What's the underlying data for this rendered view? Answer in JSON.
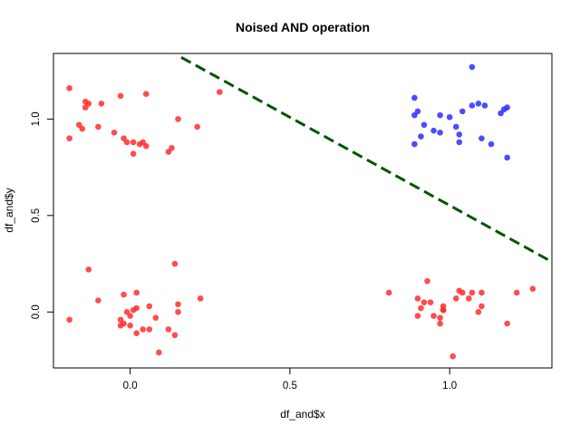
{
  "chart_data": {
    "type": "scatter",
    "title": "Noised AND operation",
    "xlabel": "df_and$x",
    "ylabel": "df_and$y",
    "xlim": [
      -0.24,
      1.32
    ],
    "ylim": [
      -0.29,
      1.34
    ],
    "x_ticks": [
      0.0,
      0.5,
      1.0
    ],
    "x_tick_labels": [
      "0.0",
      "0.5",
      "1.0"
    ],
    "y_ticks": [
      0.0,
      0.5,
      1.0
    ],
    "y_tick_labels": [
      "0.0",
      "0.5",
      "1.0"
    ],
    "grid": false,
    "legend": "none",
    "series": [
      {
        "color": "#ff2d2d",
        "points": [
          [
            -0.19,
            1.16
          ],
          [
            -0.14,
            1.09
          ],
          [
            -0.13,
            1.08
          ],
          [
            -0.14,
            1.06
          ],
          [
            -0.09,
            1.08
          ],
          [
            -0.03,
            1.12
          ],
          [
            0.05,
            1.13
          ],
          [
            0.28,
            1.14
          ],
          [
            0.15,
            1.0
          ],
          [
            0.21,
            0.96
          ],
          [
            -0.16,
            0.97
          ],
          [
            -0.15,
            0.95
          ],
          [
            -0.1,
            0.96
          ],
          [
            -0.05,
            0.93
          ],
          [
            -0.19,
            0.9
          ],
          [
            -0.02,
            0.9
          ],
          [
            -0.01,
            0.88
          ],
          [
            0.01,
            0.88
          ],
          [
            0.03,
            0.87
          ],
          [
            0.04,
            0.88
          ],
          [
            0.05,
            0.86
          ],
          [
            0.13,
            0.85
          ],
          [
            0.12,
            0.83
          ],
          [
            0.01,
            0.82
          ],
          [
            -0.19,
            -0.04
          ],
          [
            -0.13,
            0.22
          ],
          [
            -0.1,
            0.06
          ],
          [
            -0.02,
            0.09
          ],
          [
            0.02,
            0.1
          ],
          [
            0.14,
            0.25
          ],
          [
            0.22,
            0.07
          ],
          [
            0.15,
            0.04
          ],
          [
            0.06,
            0.03
          ],
          [
            -0.01,
            0.0
          ],
          [
            0.01,
            0.01
          ],
          [
            0.02,
            0.02
          ],
          [
            0.0,
            -0.02
          ],
          [
            -0.03,
            -0.04
          ],
          [
            -0.03,
            -0.07
          ],
          [
            -0.02,
            -0.06
          ],
          [
            0.0,
            -0.07
          ],
          [
            0.04,
            -0.09
          ],
          [
            0.06,
            -0.09
          ],
          [
            0.02,
            -0.11
          ],
          [
            0.08,
            -0.03
          ],
          [
            0.12,
            -0.09
          ],
          [
            0.14,
            -0.12
          ],
          [
            0.15,
            -0.0
          ],
          [
            0.09,
            -0.21
          ],
          [
            0.81,
            0.1
          ],
          [
            0.93,
            0.16
          ],
          [
            0.9,
            0.07
          ],
          [
            0.92,
            0.05
          ],
          [
            0.91,
            0.02
          ],
          [
            0.9,
            -0.02
          ],
          [
            0.94,
            0.05
          ],
          [
            0.95,
            -0.02
          ],
          [
            0.97,
            -0.03
          ],
          [
            0.98,
            0.03
          ],
          [
            0.98,
            0.01
          ],
          [
            1.02,
            0.07
          ],
          [
            1.03,
            0.11
          ],
          [
            1.04,
            0.1
          ],
          [
            1.07,
            0.1
          ],
          [
            1.1,
            0.1
          ],
          [
            1.06,
            0.07
          ],
          [
            1.09,
            0.0
          ],
          [
            1.1,
            0.03
          ],
          [
            1.21,
            0.1
          ],
          [
            1.26,
            0.12
          ],
          [
            1.18,
            -0.06
          ],
          [
            1.01,
            -0.23
          ],
          [
            0.97,
            -0.06
          ],
          [
            0.98,
            0.01
          ]
        ]
      },
      {
        "color": "#2d2dff",
        "points": [
          [
            1.07,
            1.27
          ],
          [
            0.89,
            1.11
          ],
          [
            1.07,
            1.07
          ],
          [
            1.09,
            1.08
          ],
          [
            1.11,
            1.07
          ],
          [
            0.9,
            1.04
          ],
          [
            0.89,
            1.02
          ],
          [
            0.97,
            1.02
          ],
          [
            1.0,
            1.01
          ],
          [
            1.04,
            1.04
          ],
          [
            1.16,
            1.03
          ],
          [
            1.17,
            1.05
          ],
          [
            1.18,
            1.06
          ],
          [
            0.92,
            0.97
          ],
          [
            0.95,
            0.94
          ],
          [
            0.97,
            0.93
          ],
          [
            1.02,
            0.96
          ],
          [
            1.03,
            0.92
          ],
          [
            1.03,
            0.88
          ],
          [
            0.91,
            0.91
          ],
          [
            0.89,
            0.87
          ],
          [
            1.1,
            0.9
          ],
          [
            1.13,
            0.87
          ],
          [
            1.18,
            0.8
          ]
        ]
      }
    ],
    "line": {
      "style": "dashed",
      "color": "#005500",
      "points": [
        [
          0.16,
          1.32
        ],
        [
          1.32,
          0.26
        ]
      ]
    }
  }
}
